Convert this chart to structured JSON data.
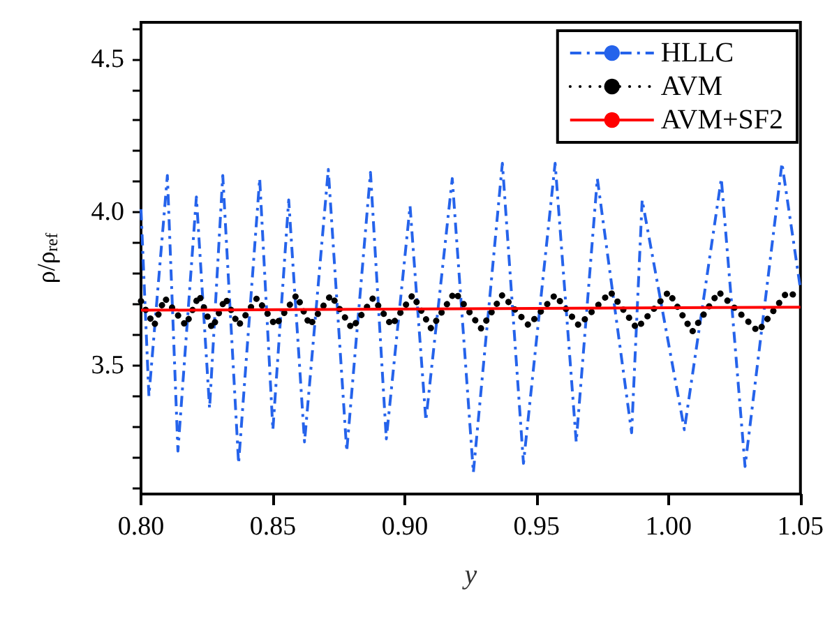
{
  "chart_data": {
    "type": "line",
    "xlabel": "y",
    "ylabel": "ρ/ρ$_{ref}$",
    "xlim": [
      0.8,
      1.05
    ],
    "ylim": [
      3.08,
      4.62
    ],
    "xticks": [
      {
        "value": 0.8,
        "label": "0.80"
      },
      {
        "value": 0.85,
        "label": "0.85"
      },
      {
        "value": 0.9,
        "label": "0.90"
      },
      {
        "value": 0.95,
        "label": "0.95"
      },
      {
        "value": 1.0,
        "label": "1.00"
      },
      {
        "value": 1.05,
        "label": "1.05"
      }
    ],
    "yticks": [
      {
        "value": 3.1,
        "label": null
      },
      {
        "value": 3.2,
        "label": null
      },
      {
        "value": 3.3,
        "label": null
      },
      {
        "value": 3.4,
        "label": null
      },
      {
        "value": 3.5,
        "label": "3.5"
      },
      {
        "value": 3.6,
        "label": null
      },
      {
        "value": 3.7,
        "label": null
      },
      {
        "value": 3.8,
        "label": null
      },
      {
        "value": 3.9,
        "label": null
      },
      {
        "value": 4.0,
        "label": "4.0"
      },
      {
        "value": 4.1,
        "label": null
      },
      {
        "value": 4.2,
        "label": null
      },
      {
        "value": 4.3,
        "label": null
      },
      {
        "value": 4.4,
        "label": null
      },
      {
        "value": 4.5,
        "label": "4.5"
      },
      {
        "value": 4.6,
        "label": null
      }
    ],
    "grid": false,
    "legend": "top right",
    "marker": "none",
    "series": [
      {
        "name": "HLLC",
        "color": "#2563eb",
        "line_style": "dashed",
        "x": [
          0.8,
          0.803,
          0.81,
          0.814,
          0.821,
          0.826,
          0.831,
          0.837,
          0.845,
          0.85,
          0.856,
          0.862,
          0.871,
          0.878,
          0.887,
          0.893,
          0.902,
          0.908,
          0.918,
          0.926,
          0.937,
          0.945,
          0.957,
          0.965,
          0.973,
          0.986,
          0.99,
          1.006,
          1.02,
          1.029,
          1.043,
          1.05
        ],
        "values": [
          4.01,
          3.4,
          4.12,
          3.22,
          4.05,
          3.36,
          4.12,
          3.18,
          4.11,
          3.29,
          4.04,
          3.25,
          4.14,
          3.22,
          4.13,
          3.26,
          4.02,
          3.32,
          4.11,
          3.15,
          4.16,
          3.18,
          4.16,
          3.25,
          4.11,
          3.28,
          4.04,
          3.29,
          4.11,
          3.17,
          4.16,
          3.75
        ]
      },
      {
        "name": "AVM",
        "color": "#000000",
        "line_style": "dotted",
        "x": [
          0.8,
          0.805,
          0.809,
          0.817,
          0.822,
          0.827,
          0.832,
          0.837,
          0.844,
          0.851,
          0.859,
          0.864,
          0.872,
          0.88,
          0.888,
          0.895,
          0.903,
          0.91,
          0.919,
          0.929,
          0.937,
          0.947,
          0.957,
          0.966,
          0.978,
          0.988,
          1.0,
          1.009,
          1.019,
          1.034,
          1.045,
          1.05
        ],
        "values": [
          3.71,
          3.63,
          3.72,
          3.63,
          3.73,
          3.62,
          3.72,
          3.63,
          3.72,
          3.63,
          3.73,
          3.63,
          3.73,
          3.62,
          3.72,
          3.63,
          3.73,
          3.62,
          3.74,
          3.62,
          3.73,
          3.63,
          3.73,
          3.63,
          3.74,
          3.62,
          3.74,
          3.61,
          3.74,
          3.61,
          3.74,
          3.72
        ]
      },
      {
        "name": "AVM+SF2",
        "color": "#ff0000",
        "line_style": "solid",
        "x": [
          0.8,
          1.05
        ],
        "values": [
          3.68,
          3.69
        ]
      }
    ]
  }
}
